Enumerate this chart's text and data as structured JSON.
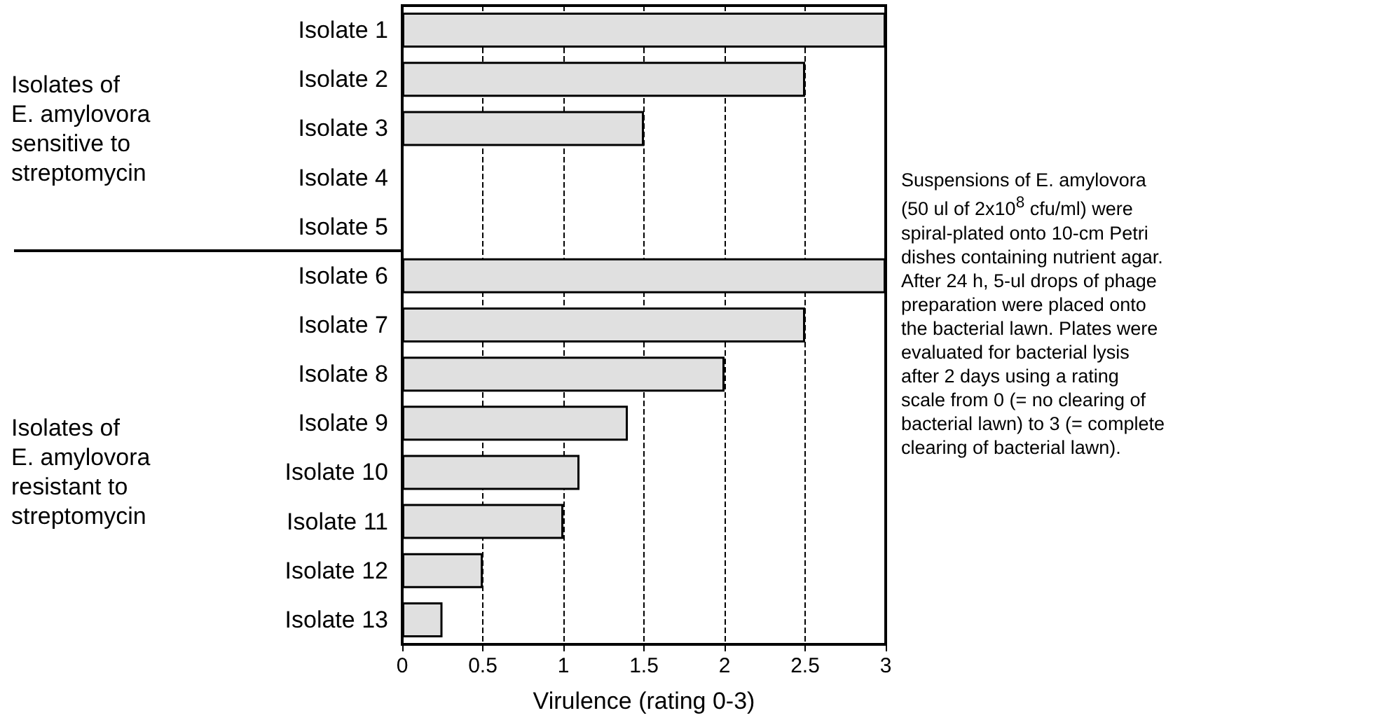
{
  "chart_data": {
    "type": "bar",
    "orientation": "horizontal",
    "xlabel": "Virulence (rating 0-3)",
    "categories": [
      "Isolate 1",
      "Isolate 2",
      "Isolate 3",
      "Isolate 4",
      "Isolate 5",
      "Isolate 6",
      "Isolate 7",
      "Isolate 8",
      "Isolate 9",
      "Isolate 10",
      "Isolate 11",
      "Isolate 12",
      "Isolate 13"
    ],
    "values": [
      3,
      2.5,
      1.5,
      0,
      0,
      3,
      2.5,
      2,
      1.4,
      1.1,
      1.0,
      0.5,
      0.25
    ],
    "color": "#e0e0e0",
    "xlim": [
      0,
      3
    ],
    "xticks": [
      0,
      0.5,
      1,
      1.5,
      2,
      2.5,
      3
    ],
    "grid": "x",
    "annotations": [
      "Isolates of\nE. amylovora\nsensitive to\nstreptomycin",
      "Isolates of\nE. amylovora\nresistant to\nstreptomycin",
      "Suspensions of E. amylovora\n(50 ul of 2x10$^{8}$ cfu/ml) were\nspiral-plated onto 10-cm Petri\ndishes containing nutrient agar.\nAfter 24 h, 5-ul drops of phage\npreparation were placed onto\nthe bacterial lawn. Plates were\nevaluated for bacterial lysis\nafter 2 days using a rating\nscale from 0 (= no clearing of\nbacterial lawn) to 3 (= complete\nclearing of bacterial lawn)."
    ]
  }
}
